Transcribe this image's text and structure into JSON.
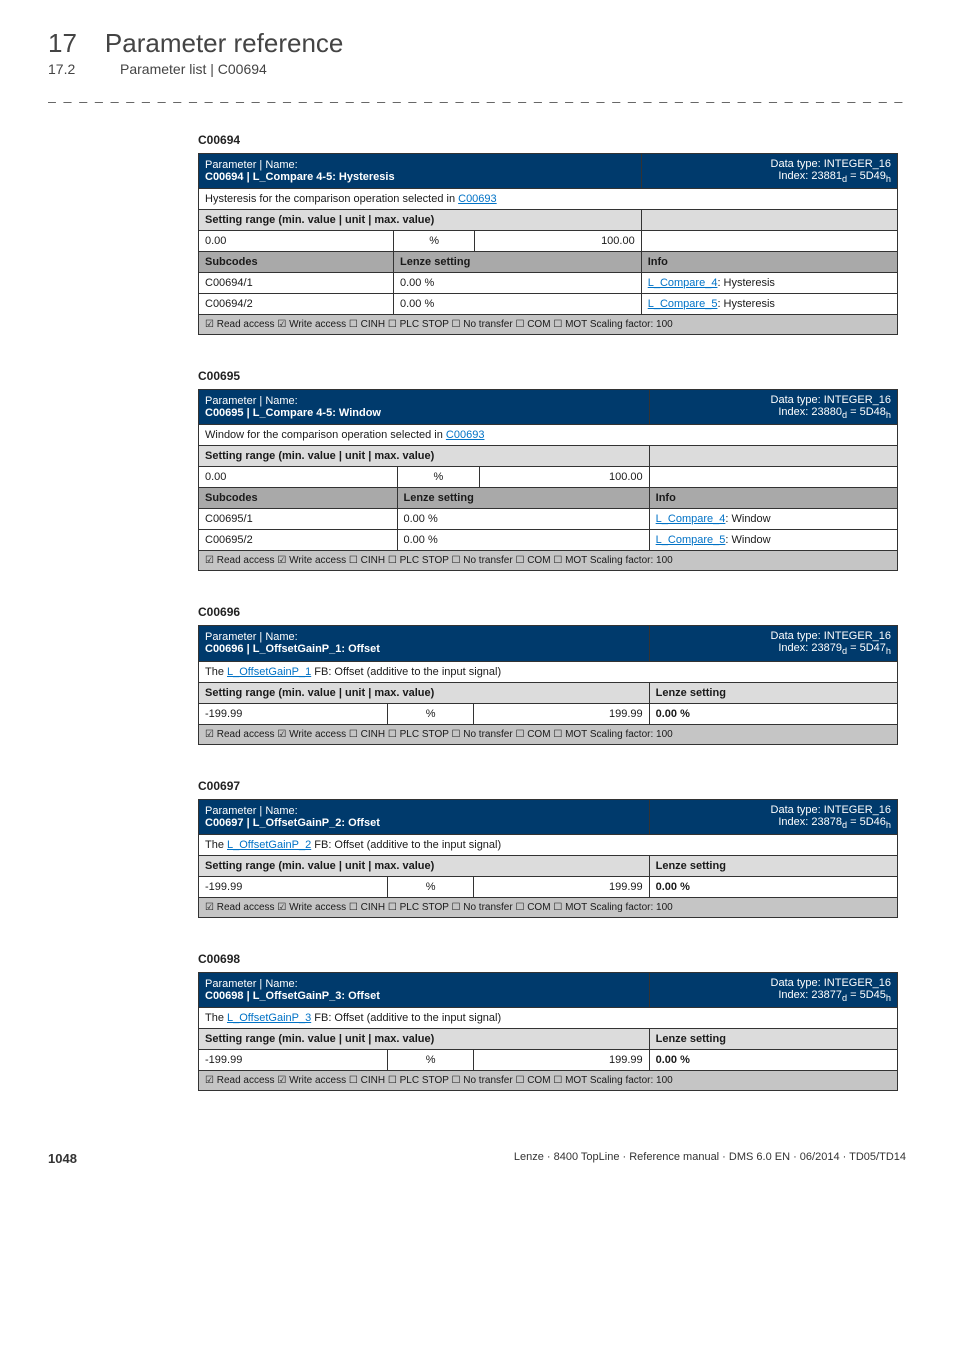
{
  "chapter": {
    "num": "17",
    "title": "Parameter reference"
  },
  "subchapter": {
    "num": "17.2",
    "title": "Parameter list | C00694"
  },
  "dashline": "_ _ _ _ _ _ _ _ _ _ _ _ _ _ _ _ _ _ _ _ _ _ _ _ _ _ _ _ _ _ _ _ _ _ _ _ _ _ _ _ _ _ _ _ _ _ _ _ _ _ _ _ _ _ _ _ _ _ _ _ _ _ _ _",
  "p1": {
    "code": "C00694",
    "header_left": "Parameter | Name:",
    "header_name": "C00694 | L_Compare 4-5: Hysteresis",
    "header_right_top": "Data type: INTEGER_16",
    "header_right_bot": "Index: 23881",
    "header_right_sub": "d",
    "header_right_eq": " = 5D49",
    "header_right_sub2": "h",
    "desc_pre": "Hysteresis for the comparison operation selected in ",
    "desc_link": "C00693",
    "setting_label": "Setting range (min. value | unit | max. value)",
    "min": "0.00",
    "unit": "%",
    "max": "100.00",
    "col_sub": "Subcodes",
    "col_lz": "Lenze setting",
    "col_info": "Info",
    "r1_sub": "C00694/1",
    "r1_lz": "0.00 %",
    "r1_info_link": "L_Compare_4",
    "r1_info_suffix": ": Hysteresis",
    "r2_sub": "C00694/2",
    "r2_lz": "0.00 %",
    "r2_info_link": "L_Compare_5",
    "r2_info_suffix": ": Hysteresis",
    "access": "☑ Read access  ☑ Write access  ☐ CINH  ☐ PLC STOP  ☐ No transfer  ☐ COM  ☐ MOT    Scaling factor: 100"
  },
  "p2": {
    "code": "C00695",
    "header_left": "Parameter | Name:",
    "header_name": "C00695 | L_Compare 4-5: Window",
    "header_right_top": "Data type: INTEGER_16",
    "header_right_bot": "Index: 23880",
    "header_right_sub": "d",
    "header_right_eq": " = 5D48",
    "header_right_sub2": "h",
    "desc_pre": "Window for the comparison operation selected in ",
    "desc_link": "C00693",
    "setting_label": "Setting range (min. value | unit | max. value)",
    "min": "0.00",
    "unit": "%",
    "max": "100.00",
    "col_sub": "Subcodes",
    "col_lz": "Lenze setting",
    "col_info": "Info",
    "r1_sub": "C00695/1",
    "r1_lz": "0.00 %",
    "r1_info_link": "L_Compare_4",
    "r1_info_suffix": ": Window",
    "r2_sub": "C00695/2",
    "r2_lz": "0.00 %",
    "r2_info_link": "L_Compare_5",
    "r2_info_suffix": ": Window",
    "access": "☑ Read access  ☑ Write access  ☐ CINH  ☐ PLC STOP  ☐ No transfer  ☐ COM  ☐ MOT    Scaling factor: 100"
  },
  "p3": {
    "code": "C00696",
    "header_left": "Parameter | Name:",
    "header_name": "C00696 | L_OffsetGainP_1: Offset",
    "header_right_top": "Data type: INTEGER_16",
    "header_right_bot": "Index: 23879",
    "header_right_sub": "d",
    "header_right_eq": " = 5D47",
    "header_right_sub2": "h",
    "desc_pre": "The ",
    "desc_link": "L_OffsetGainP_1",
    "desc_post": " FB: Offset (additive to the input signal)",
    "setting_label": "Setting range (min. value | unit | max. value)",
    "lz_col": "Lenze setting",
    "min": "-199.99",
    "unit": "%",
    "max": "199.99",
    "lz_val": "0.00 %",
    "access": "☑ Read access  ☑ Write access  ☐ CINH  ☐ PLC STOP  ☐ No transfer  ☐ COM  ☐ MOT    Scaling factor: 100"
  },
  "p4": {
    "code": "C00697",
    "header_left": "Parameter | Name:",
    "header_name": "C00697 | L_OffsetGainP_2: Offset",
    "header_right_top": "Data type: INTEGER_16",
    "header_right_bot": "Index: 23878",
    "header_right_sub": "d",
    "header_right_eq": " = 5D46",
    "header_right_sub2": "h",
    "desc_pre": "The ",
    "desc_link": "L_OffsetGainP_2",
    "desc_post": " FB: Offset (additive to the input signal)",
    "setting_label": "Setting range (min. value | unit | max. value)",
    "lz_col": "Lenze setting",
    "min": "-199.99",
    "unit": "%",
    "max": "199.99",
    "lz_val": "0.00 %",
    "access": "☑ Read access  ☑ Write access  ☐ CINH  ☐ PLC STOP  ☐ No transfer  ☐ COM  ☐ MOT    Scaling factor: 100"
  },
  "p5": {
    "code": "C00698",
    "header_left": "Parameter | Name:",
    "header_name": "C00698 | L_OffsetGainP_3: Offset",
    "header_right_top": "Data type: INTEGER_16",
    "header_right_bot": "Index: 23877",
    "header_right_sub": "d",
    "header_right_eq": " = 5D45",
    "header_right_sub2": "h",
    "desc_pre": "The ",
    "desc_link": "L_OffsetGainP_3",
    "desc_post": " FB: Offset (additive to the input signal)",
    "setting_label": "Setting range (min. value | unit | max. value)",
    "lz_col": "Lenze setting",
    "min": "-199.99",
    "unit": "%",
    "max": "199.99",
    "lz_val": "0.00 %",
    "access": "☑ Read access  ☑ Write access  ☐ CINH  ☐ PLC STOP  ☐ No transfer  ☐ COM  ☐ MOT    Scaling factor: 100"
  },
  "footer": {
    "page": "1048",
    "text": "Lenze · 8400 TopLine · Reference manual · DMS 6.0 EN · 06/2014 · TD05/TD14"
  }
}
